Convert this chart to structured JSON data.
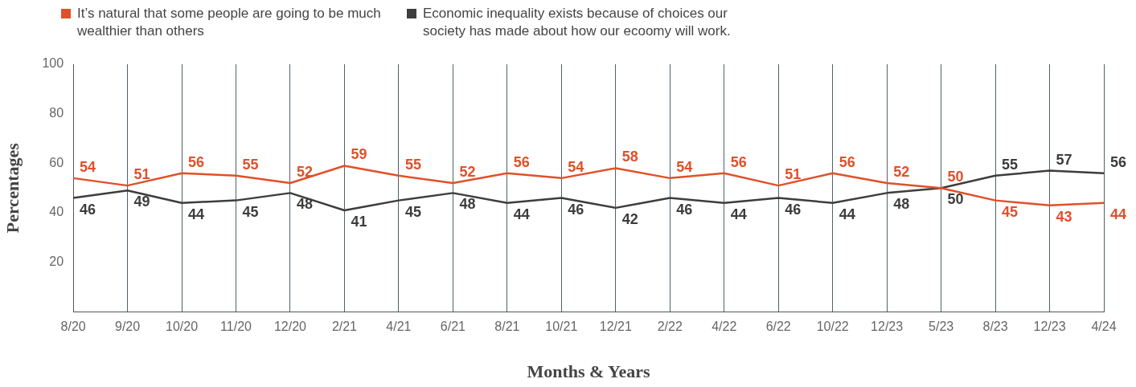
{
  "chart_data": {
    "type": "line",
    "xlabel": "Months & Years",
    "ylabel": "Percentages",
    "categories": [
      "8/20",
      "9/20",
      "10/20",
      "11/20",
      "12/20",
      "2/21",
      "4/21",
      "6/21",
      "8/21",
      "10/21",
      "12/21",
      "2/22",
      "4/22",
      "6/22",
      "10/22",
      "12/23",
      "5/23",
      "8/23",
      "12/23",
      "4/24"
    ],
    "series": [
      {
        "name": "It’s natural that some people are going to be much wealthier than others",
        "color": "#e0502a",
        "values": [
          54,
          51,
          56,
          55,
          52,
          59,
          55,
          52,
          56,
          54,
          58,
          54,
          56,
          51,
          56,
          52,
          50,
          45,
          43,
          44
        ]
      },
      {
        "name": "Economic inequality exists because of choices our society has made about how our ecoomy will work.",
        "color": "#3d3d3d",
        "values": [
          46,
          49,
          44,
          45,
          48,
          41,
          45,
          48,
          44,
          46,
          42,
          46,
          44,
          46,
          44,
          48,
          50,
          55,
          57,
          56
        ]
      }
    ],
    "ylim": [
      0,
      100
    ],
    "yticks": [
      20,
      40,
      60,
      80,
      100
    ],
    "grid": "x",
    "legend": "top left",
    "data_labels": true
  }
}
